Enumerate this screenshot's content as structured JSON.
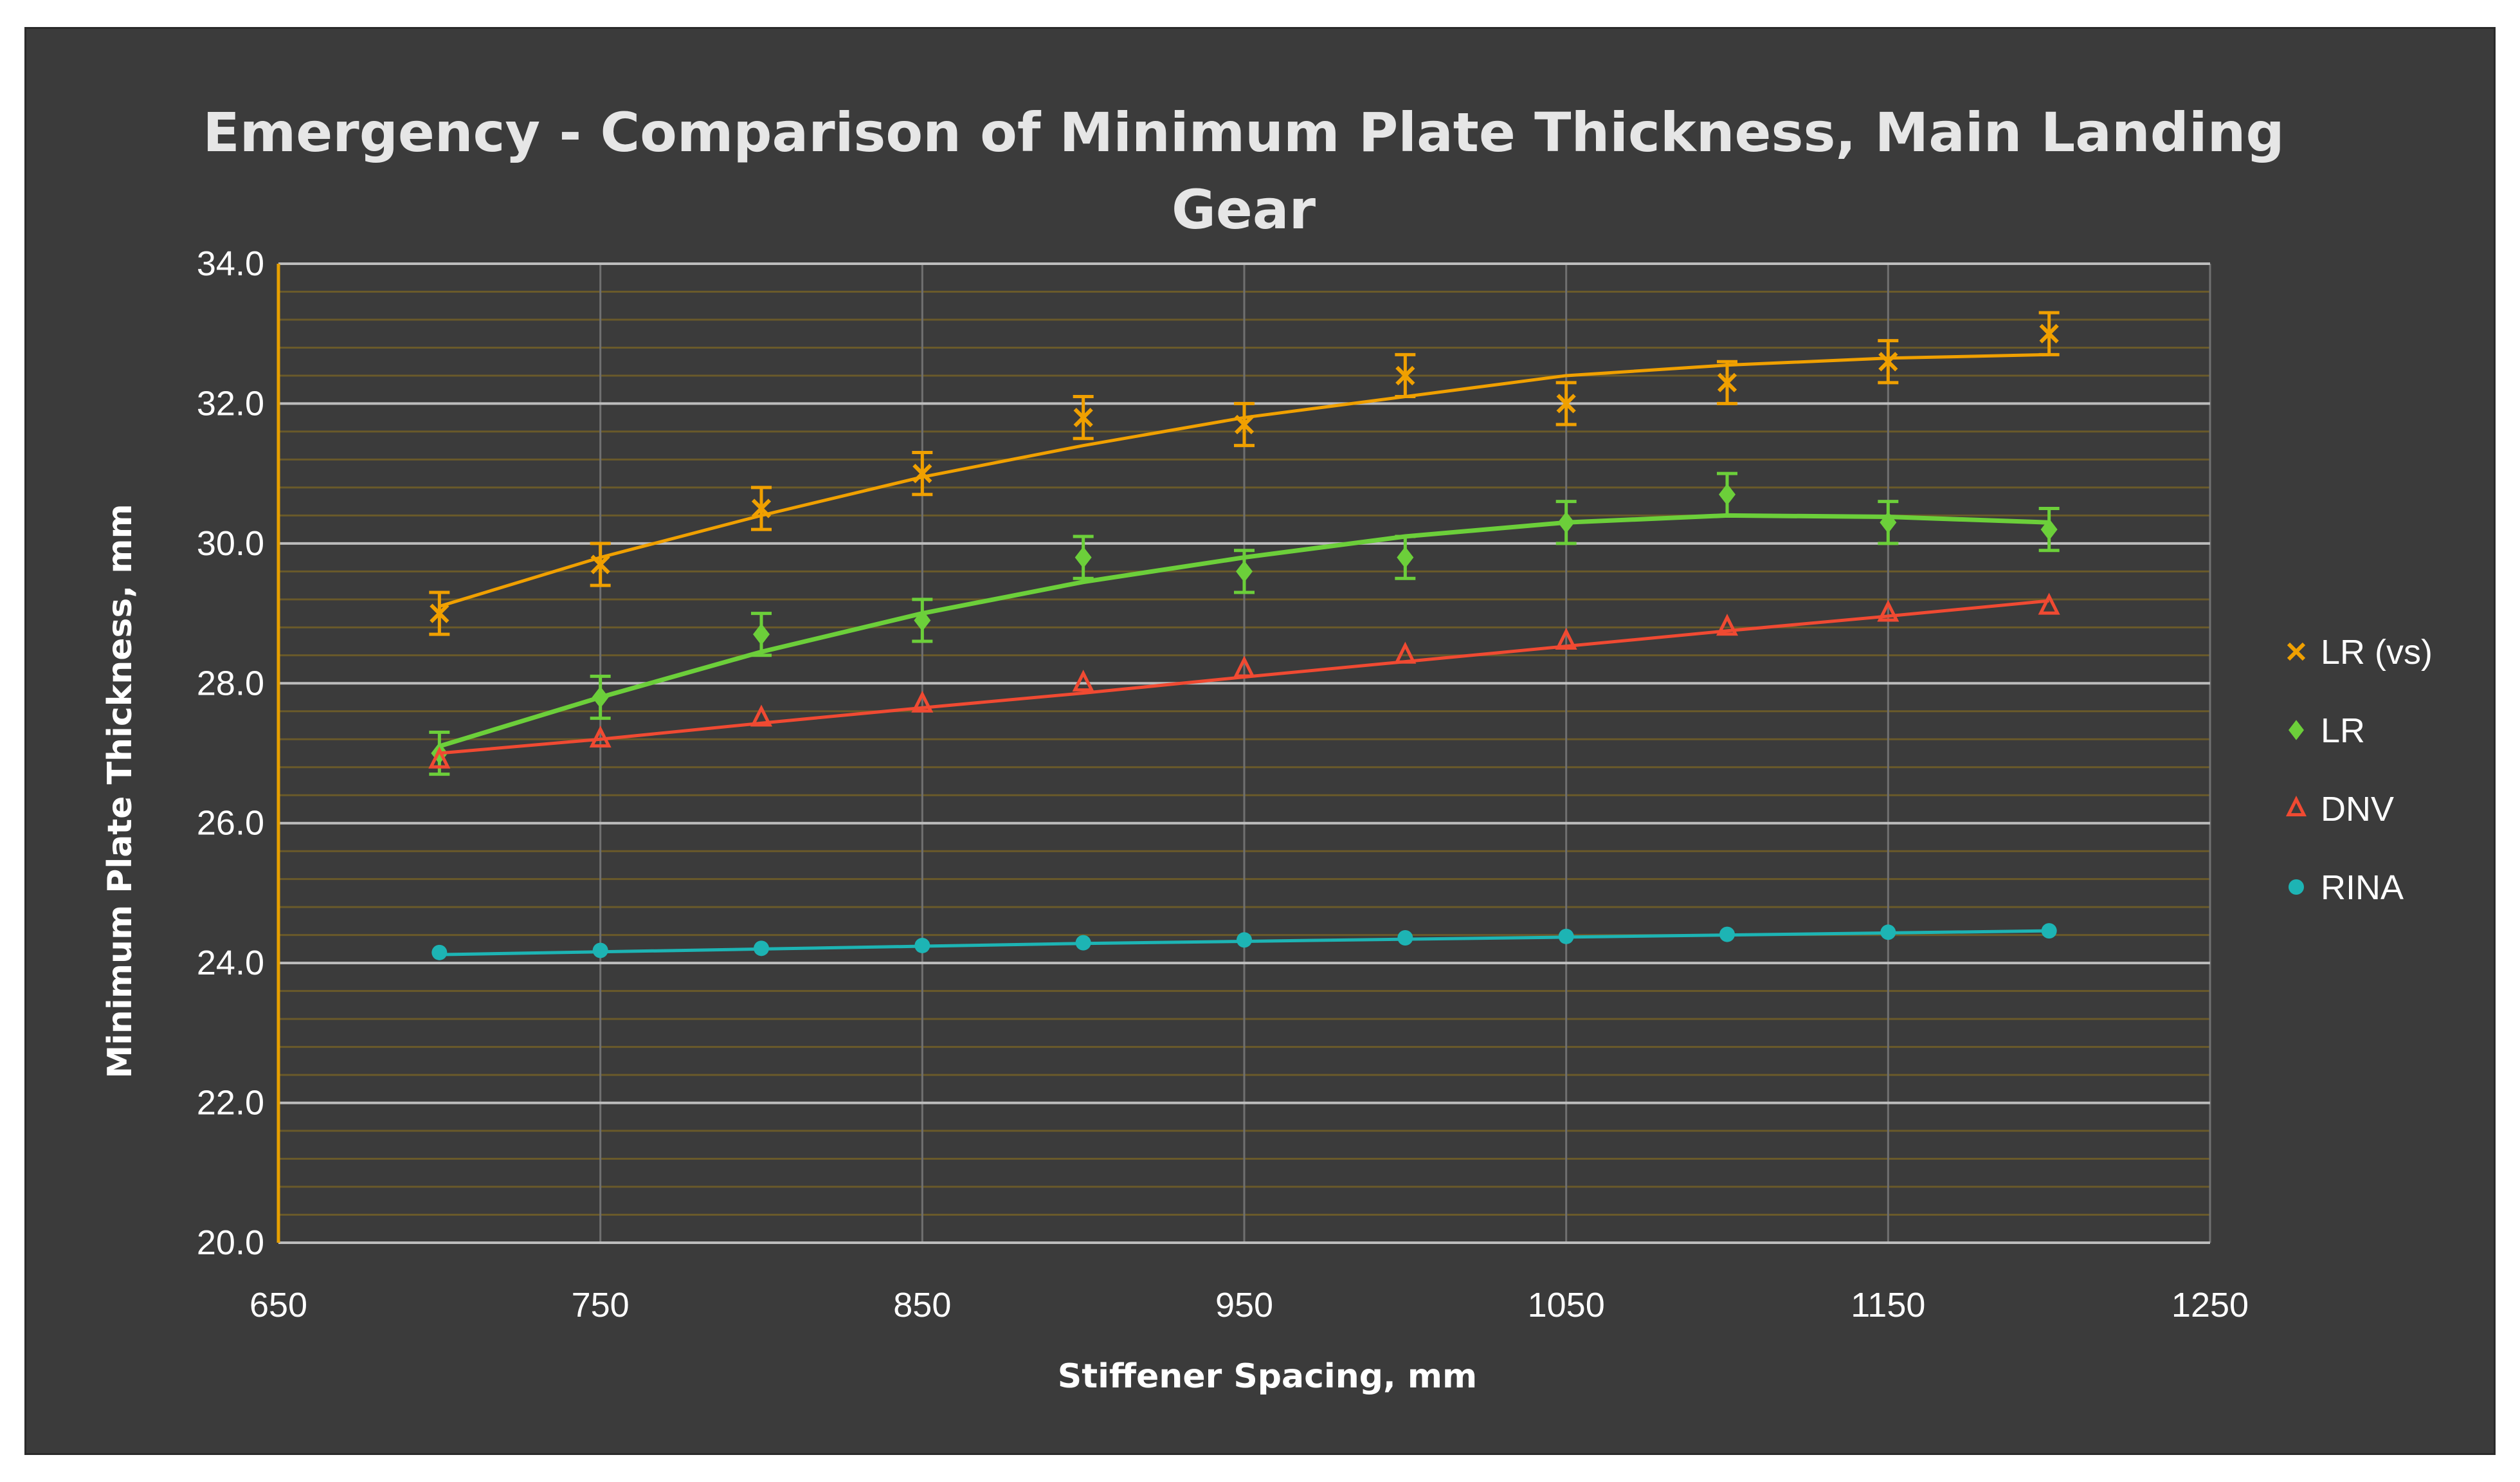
{
  "chart_data": {
    "type": "scatter",
    "title_lines": [
      "Emergency - Comparison of Minimum Plate Thickness, Main Landing",
      "Gear"
    ],
    "xlabel": "Stiffener Spacing, mm",
    "ylabel": "Minimum Plate Thickness, mm",
    "xlim": [
      650,
      1250
    ],
    "ylim": [
      20,
      34
    ],
    "x_ticks": [
      "650",
      "750",
      "850",
      "950",
      "1050",
      "1150",
      "1250"
    ],
    "y_ticks": [
      "20.0",
      "22.0",
      "24.0",
      "26.0",
      "28.0",
      "30.0",
      "32.0",
      "34.0"
    ],
    "x": [
      700,
      750,
      800,
      850,
      900,
      950,
      1000,
      1050,
      1100,
      1150,
      1200
    ],
    "series": [
      {
        "name": "LR (vs)",
        "color": "#f0a000",
        "marker": "x",
        "values": [
          29.0,
          29.7,
          30.5,
          31.0,
          31.8,
          31.7,
          32.4,
          32.0,
          32.3,
          32.6,
          33.0
        ],
        "error": 0.3,
        "trend": [
          29.1,
          29.8,
          30.4,
          30.95,
          31.4,
          31.8,
          32.1,
          32.4,
          32.55,
          32.65,
          32.7
        ]
      },
      {
        "name": "LR",
        "color": "#6ccf3a",
        "marker": "diamond",
        "values": [
          27.0,
          27.8,
          28.7,
          28.9,
          29.8,
          29.6,
          29.8,
          30.3,
          30.7,
          30.3,
          30.2
        ],
        "error": 0.3,
        "trend": [
          27.1,
          27.8,
          28.45,
          29.0,
          29.45,
          29.8,
          30.1,
          30.3,
          30.4,
          30.38,
          30.3
        ]
      },
      {
        "name": "DNV",
        "color": "#f04a32",
        "marker": "triangle",
        "values": [
          26.9,
          27.2,
          27.5,
          27.7,
          28.0,
          28.2,
          28.4,
          28.6,
          28.8,
          29.0,
          29.1
        ],
        "trend": [
          27.0,
          27.2,
          27.43,
          27.65,
          27.86,
          28.09,
          28.31,
          28.53,
          28.75,
          28.96,
          29.18
        ]
      },
      {
        "name": "RINA",
        "color": "#1db4b4",
        "marker": "circle",
        "values": [
          24.15,
          24.18,
          24.21,
          24.25,
          24.29,
          24.33,
          24.36,
          24.38,
          24.41,
          24.44,
          24.46
        ],
        "trend": [
          24.12,
          24.16,
          24.2,
          24.24,
          24.28,
          24.31,
          24.34,
          24.37,
          24.4,
          24.43,
          24.46
        ]
      }
    ],
    "legend_position": "right"
  }
}
